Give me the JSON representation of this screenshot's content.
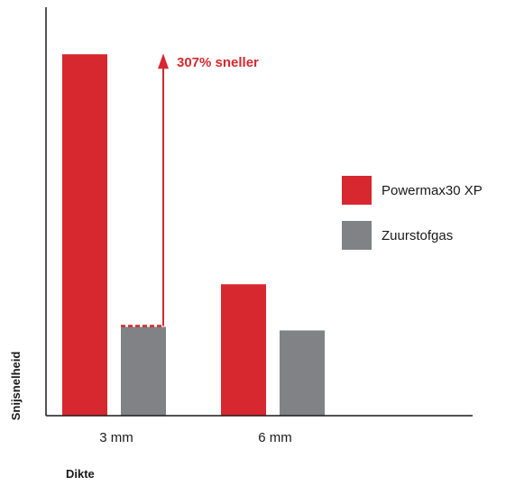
{
  "chart_data": {
    "type": "bar",
    "xlabel": "Dikte",
    "ylabel": "Snijsnelheid",
    "categories": [
      "3 mm",
      "6 mm"
    ],
    "series": [
      {
        "name": "Powermax30 XP",
        "color": "#D7282F",
        "values": [
          4.07,
          1.48
        ]
      },
      {
        "name": "Zuurstofgas",
        "color": "#808285",
        "values": [
          1.0,
          0.96
        ]
      }
    ],
    "ylim": [
      0,
      4.6
    ],
    "grid": false,
    "legend_position": "right",
    "annotations": [
      {
        "text": "307% sneller",
        "category": "3 mm",
        "from": 1.0,
        "to": 4.07,
        "color": "#D7282F"
      }
    ]
  }
}
